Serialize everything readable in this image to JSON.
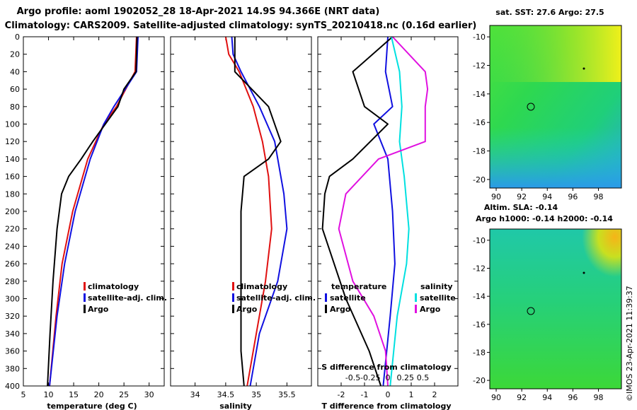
{
  "header": {
    "title_line1": "Argo profile: aoml 1902052_28 18-Apr-2021 14.9S 94.366E (NRT data)",
    "title_line2": "Climatology: CARS2009. Satellite-adjusted climatology: synTS_20210418.nc (0.16d earlier)"
  },
  "colors": {
    "climatology": "#e01010",
    "satellite": "#1010e0",
    "argo": "#000000",
    "sal_satellite": "#00e0e0",
    "sal_argo": "#e010e0"
  },
  "chart_data": [
    {
      "type": "line",
      "name": "temperature-profile",
      "xlabel": "temperature (deg C)",
      "ylabel": "depth",
      "xlim": [
        5,
        33
      ],
      "ylim": [
        0,
        400
      ],
      "xticks": [
        5,
        10,
        15,
        20,
        25,
        30
      ],
      "yticks": [
        0,
        20,
        40,
        60,
        80,
        100,
        120,
        140,
        160,
        180,
        200,
        220,
        240,
        260,
        280,
        300,
        320,
        340,
        360,
        380,
        400
      ],
      "legend": [
        "climatology",
        "satellite-adj. clim.",
        "Argo"
      ],
      "series": [
        {
          "name": "climatology",
          "color": "#e01010",
          "depth": [
            0,
            40,
            80,
            100,
            140,
            200,
            260,
            320,
            400
          ],
          "values": [
            27.5,
            27.2,
            23.5,
            21.0,
            17.8,
            14.8,
            12.7,
            11.5,
            10.2
          ]
        },
        {
          "name": "satellite-adj. clim.",
          "color": "#1010e0",
          "depth": [
            0,
            40,
            80,
            100,
            140,
            200,
            260,
            320,
            400
          ],
          "values": [
            27.8,
            27.5,
            23.0,
            21.0,
            18.3,
            15.3,
            13.2,
            11.7,
            10.2
          ]
        },
        {
          "name": "Argo",
          "color": "#000000",
          "depth": [
            0,
            40,
            60,
            80,
            100,
            120,
            140,
            160,
            180,
            220,
            280,
            340,
            400
          ],
          "values": [
            27.6,
            27.4,
            25.0,
            23.8,
            21.3,
            18.8,
            16.5,
            14.0,
            12.6,
            11.7,
            10.9,
            10.3,
            9.8
          ]
        }
      ]
    },
    {
      "type": "line",
      "name": "salinity-profile",
      "xlabel": "salinity",
      "xlim": [
        33.6,
        35.9
      ],
      "ylim": [
        0,
        400
      ],
      "xticks": [
        34,
        34.5,
        35,
        35.5
      ],
      "legend": [
        "climatology",
        "satellite-adj. clim.",
        "Argo"
      ],
      "series": [
        {
          "name": "climatology",
          "color": "#e01010",
          "depth": [
            0,
            20,
            40,
            80,
            120,
            160,
            220,
            280,
            340,
            400
          ],
          "values": [
            34.5,
            34.55,
            34.72,
            34.95,
            35.1,
            35.2,
            35.25,
            35.15,
            35.0,
            34.85
          ]
        },
        {
          "name": "satellite-adj. clim.",
          "color": "#1010e0",
          "depth": [
            0,
            20,
            40,
            80,
            120,
            180,
            220,
            280,
            340,
            400
          ],
          "values": [
            34.6,
            34.62,
            34.75,
            35.05,
            35.3,
            35.45,
            35.5,
            35.35,
            35.05,
            34.9
          ]
        },
        {
          "name": "Argo",
          "color": "#000000",
          "depth": [
            0,
            40,
            80,
            120,
            140,
            160,
            200,
            280,
            360,
            400
          ],
          "values": [
            34.65,
            34.65,
            35.2,
            35.4,
            35.2,
            34.8,
            34.75,
            34.75,
            34.75,
            34.8
          ]
        }
      ]
    },
    {
      "type": "line",
      "name": "difference-profile",
      "xlabel": "T difference from climatology",
      "top_axis_label": "S difference from climatology",
      "xlim": [
        -3,
        3
      ],
      "ylim": [
        0,
        400
      ],
      "xticks": [
        -2,
        -1,
        0,
        1,
        2
      ],
      "top_xticks": [
        "-0.5",
        "-0.25",
        "0",
        "0.25",
        "0.5"
      ],
      "legend_temperature_title": "temperature",
      "legend_salinity_title": "salinity",
      "legend": [
        "satellite",
        "Argo"
      ],
      "series": [
        {
          "name": "temperature satellite",
          "color": "#1010e0",
          "depth": [
            0,
            40,
            80,
            100,
            140,
            200,
            260,
            320,
            400
          ],
          "values": [
            0.0,
            -0.1,
            0.2,
            -0.6,
            0.0,
            0.2,
            0.3,
            0.1,
            -0.2
          ]
        },
        {
          "name": "temperature Argo",
          "color": "#000000",
          "depth": [
            0,
            40,
            80,
            100,
            140,
            160,
            180,
            220,
            300,
            360,
            400
          ],
          "values": [
            0.2,
            -1.5,
            -1.0,
            0.0,
            -1.5,
            -2.5,
            -2.7,
            -2.8,
            -1.8,
            -0.8,
            -0.3
          ]
        },
        {
          "name": "salinity satellite",
          "color": "#00e0e0",
          "depth": [
            0,
            40,
            80,
            120,
            160,
            220,
            260,
            320,
            400
          ],
          "values": [
            0.15,
            0.5,
            0.6,
            0.5,
            0.7,
            0.9,
            0.8,
            0.4,
            0.1
          ]
        },
        {
          "name": "salinity Argo",
          "color": "#e010e0",
          "depth": [
            0,
            40,
            60,
            80,
            120,
            140,
            180,
            220,
            280,
            320,
            360,
            400
          ],
          "values": [
            0.2,
            1.6,
            1.7,
            1.6,
            1.6,
            -0.4,
            -1.8,
            -2.1,
            -1.5,
            -0.6,
            -0.1,
            0.0
          ]
        }
      ]
    }
  ],
  "maps": [
    {
      "name": "sst-map",
      "title": "sat. SST: 27.6 Argo: 27.5",
      "title2": "",
      "xticks": [
        "90",
        "92",
        "94",
        "96",
        "98"
      ],
      "yticks": [
        "-10",
        "-12",
        "-14",
        "-16",
        "-18",
        "-20"
      ],
      "profile_marker": [
        94.4,
        -14.9
      ],
      "float_marker": [
        96.9,
        -12.1
      ]
    },
    {
      "name": "sla-map",
      "title": "Altim. SLA: -0.14",
      "title2": "Argo h1000: -0.14 h2000: -0.14",
      "xticks": [
        "90",
        "92",
        "94",
        "96",
        "98"
      ],
      "yticks": [
        "-10",
        "-12",
        "-14",
        "-16",
        "-18",
        "-20"
      ],
      "profile_marker": [
        94.4,
        -14.9
      ],
      "float_marker": [
        96.9,
        -12.1
      ]
    }
  ],
  "footer": {
    "credit": "©IMOS 23-Apr-2021 11:39:37"
  }
}
